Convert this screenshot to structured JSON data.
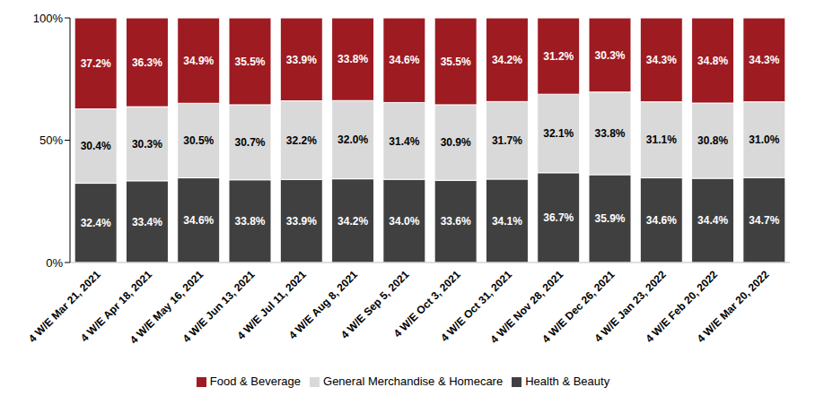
{
  "chart_data": {
    "type": "bar",
    "stacked": true,
    "data_labels": true,
    "grid": false,
    "legend": "bottom",
    "categories": [
      "4 W/E Mar 21, 2021",
      "4 W/E Apr 18, 2021",
      "4 W/E May 16, 2021",
      "4 W/E Jun 13, 2021",
      "4 W/E Jul 11, 2021",
      "4 W/E Aug 8, 2021",
      "4 W/E Sep 5, 2021",
      "4 W/E Oct 3, 2021",
      "4 W/E Oct 31, 2021",
      "4 W/E Nov 28, 2021",
      "4 W/E Dec 26, 2021",
      "4 W/E Jan 23, 2022",
      "4 W/E Feb 20, 2022",
      "4 W/E Mar 20, 2022"
    ],
    "ylim": [
      0,
      100
    ],
    "yticks": [
      {
        "value": 0,
        "label": "0%"
      },
      {
        "value": 50,
        "label": "50%"
      },
      {
        "value": 100,
        "label": "100%"
      }
    ],
    "series": [
      {
        "name": "Health & Beauty",
        "color": "#404040",
        "values": [
          32.4,
          33.4,
          34.6,
          33.8,
          33.9,
          34.2,
          34.0,
          33.6,
          34.1,
          36.7,
          35.9,
          34.6,
          34.4,
          34.7
        ],
        "value_labels": [
          "32.4%",
          "33.4%",
          "34.6%",
          "33.8%",
          "33.9%",
          "34.2%",
          "34.0%",
          "33.6%",
          "34.1%",
          "36.7%",
          "35.9%",
          "34.6%",
          "34.4%",
          "34.7%"
        ]
      },
      {
        "name": "General Merchandise & Homecare",
        "color": "#d9d9d9",
        "values": [
          30.4,
          30.3,
          30.5,
          30.7,
          32.2,
          32.0,
          31.4,
          30.9,
          31.7,
          32.1,
          33.8,
          31.1,
          30.8,
          31.0
        ],
        "value_labels": [
          "30.4%",
          "30.3%",
          "30.5%",
          "30.7%",
          "32.2%",
          "32.0%",
          "31.4%",
          "30.9%",
          "31.7%",
          "32.1%",
          "33.8%",
          "31.1%",
          "30.8%",
          "31.0%"
        ]
      },
      {
        "name": "Food & Beverage",
        "color": "#9e1b22",
        "values": [
          37.2,
          36.3,
          34.9,
          35.5,
          33.9,
          33.8,
          34.6,
          35.5,
          34.2,
          31.2,
          30.3,
          34.3,
          34.8,
          34.3
        ],
        "value_labels": [
          "37.2%",
          "36.3%",
          "34.9%",
          "35.5%",
          "33.9%",
          "33.8%",
          "34.6%",
          "35.5%",
          "34.2%",
          "31.2%",
          "30.3%",
          "34.3%",
          "34.8%",
          "34.3%"
        ]
      }
    ]
  }
}
